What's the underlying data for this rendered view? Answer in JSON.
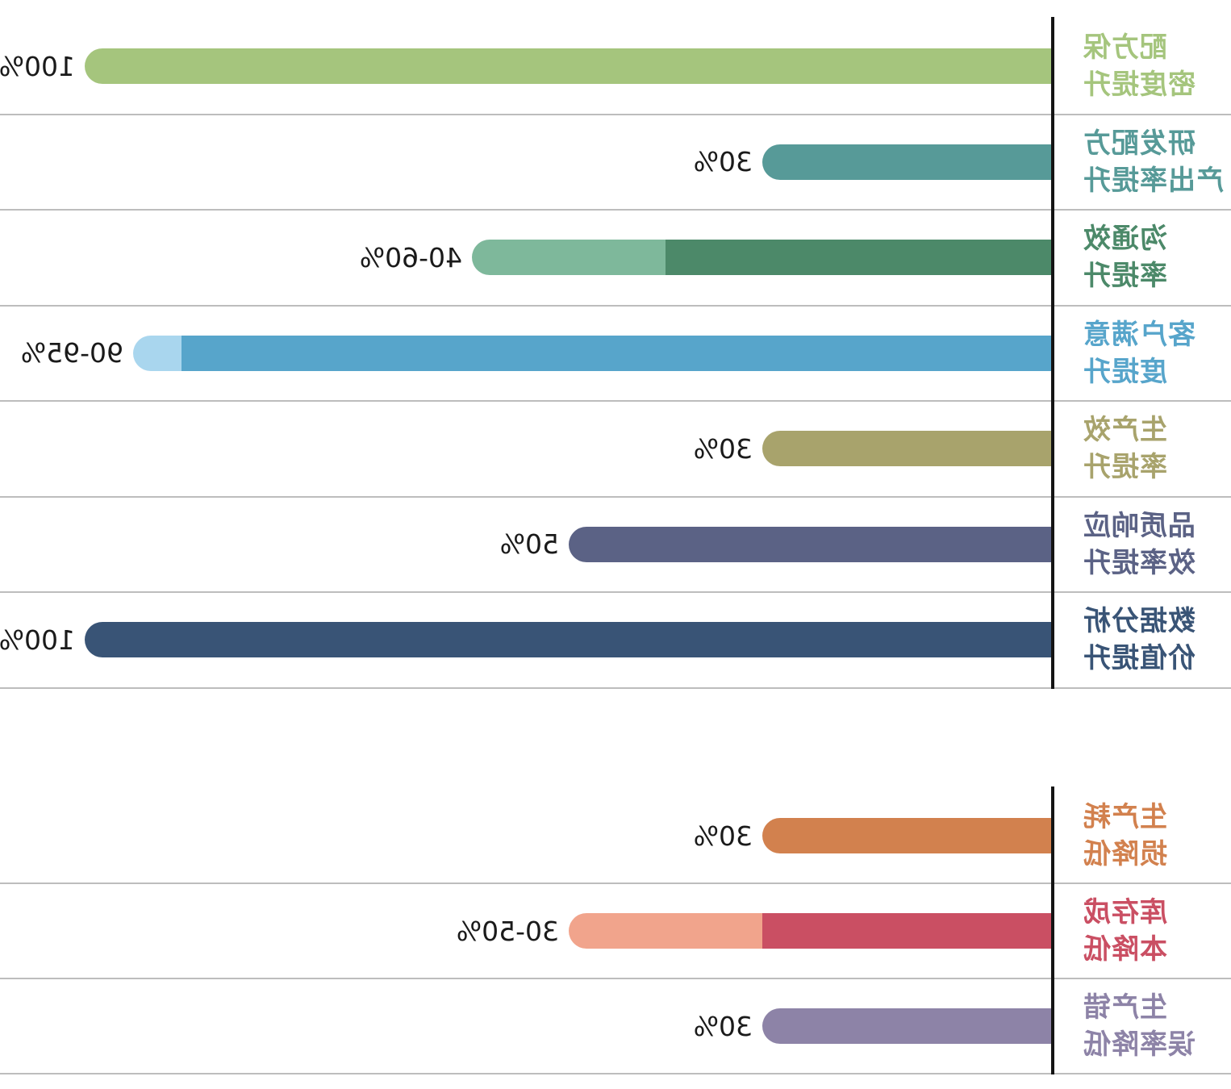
{
  "chart_data": {
    "type": "bar",
    "orientation": "horizontal",
    "mirrored": true,
    "unit": "%",
    "axis_max": 100,
    "grid": true,
    "legend": false,
    "value_text_color": "#1a1a1a",
    "axis_color": "#141414",
    "gridline_color": "#bdbdbd",
    "groups": [
      {
        "name": "improvement-metrics",
        "rows": [
          {
            "label": "配方保密度提升",
            "label_lines": [
              "配方保",
              "密度提升"
            ],
            "value_label": "100%",
            "value_min": 100,
            "value_max": 100,
            "color": "#a5c57d",
            "range_color": null
          },
          {
            "label": "研发配方产出率提升",
            "label_lines": [
              "研发配方",
              "产出率提升"
            ],
            "value_label": "30%",
            "value_min": 30,
            "value_max": 30,
            "color": "#579a98",
            "range_color": null
          },
          {
            "label": "沟通效率提升",
            "label_lines": [
              "沟通效",
              "率提升"
            ],
            "value_label": "40-60%",
            "value_min": 40,
            "value_max": 60,
            "color": "#4c8969",
            "range_color": "#7eb89b"
          },
          {
            "label": "客户满意度提升",
            "label_lines": [
              "客户满意",
              "度提升"
            ],
            "value_label": "90-95%",
            "value_min": 90,
            "value_max": 95,
            "color": "#57a5cb",
            "range_color": "#a9d6ee"
          },
          {
            "label": "生产效率提升",
            "label_lines": [
              "生产效",
              "率提升"
            ],
            "value_label": "30%",
            "value_min": 30,
            "value_max": 30,
            "color": "#a8a36c",
            "range_color": null
          },
          {
            "label": "品质响应效率提升",
            "label_lines": [
              "品质响应",
              "效率提升"
            ],
            "value_label": "50%",
            "value_min": 50,
            "value_max": 50,
            "color": "#5b6285",
            "range_color": null
          },
          {
            "label": "数据分析价值提升",
            "label_lines": [
              "数据分析",
              "价值提升"
            ],
            "value_label": "100%",
            "value_min": 100,
            "value_max": 100,
            "color": "#395476",
            "range_color": null
          }
        ]
      },
      {
        "name": "reduction-metrics",
        "rows": [
          {
            "label": "生产耗损降低",
            "label_lines": [
              "生产耗",
              "损降低"
            ],
            "value_label": "30%",
            "value_min": 30,
            "value_max": 30,
            "color": "#d2814e",
            "range_color": null
          },
          {
            "label": "库存成本降低",
            "label_lines": [
              "库存成",
              "本降低"
            ],
            "value_label": "30-50%",
            "value_min": 30,
            "value_max": 50,
            "color": "#ca4f63",
            "range_color": "#f1a48c"
          },
          {
            "label": "生产错误率降低",
            "label_lines": [
              "生产错",
              "误率降低"
            ],
            "value_label": "30%",
            "value_min": 30,
            "value_max": 30,
            "color": "#8d83a7",
            "range_color": null
          }
        ]
      }
    ]
  }
}
